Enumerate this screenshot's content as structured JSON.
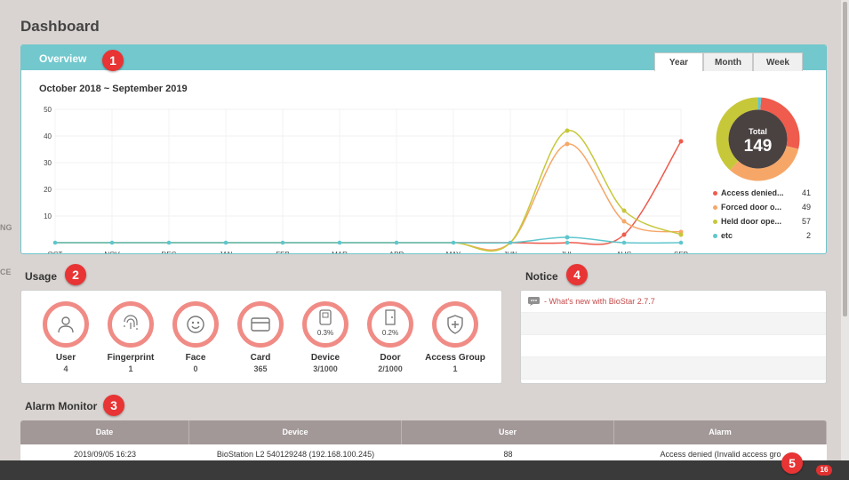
{
  "sidebar_fragments": {
    "fragment_a": "NG",
    "fragment_b": "CE"
  },
  "page_title": "Dashboard",
  "markers": [
    "1",
    "2",
    "3",
    "4",
    "5"
  ],
  "overview": {
    "title": "Overview",
    "tabs": [
      {
        "label": "Year",
        "active": true
      },
      {
        "label": "Month",
        "active": false
      },
      {
        "label": "Week",
        "active": false
      }
    ],
    "range": "October 2018 ~ September 2019",
    "total_label": "Total",
    "total_value": "149",
    "legend": [
      {
        "label": "Access denied...",
        "value": "41",
        "color": "#ef5b4c"
      },
      {
        "label": "Forced door o...",
        "value": "49",
        "color": "#f6a768"
      },
      {
        "label": "Held door ope...",
        "value": "57",
        "color": "#c7c73a"
      },
      {
        "label": "etc",
        "value": "2",
        "color": "#5fc6cd"
      }
    ]
  },
  "chart_data": {
    "type": "line",
    "categories": [
      "OCT",
      "NOV",
      "DEC",
      "JAN",
      "FEB",
      "MAR",
      "APR",
      "MAY",
      "JUN",
      "JUL",
      "AUG",
      "SEP"
    ],
    "ylim": [
      0,
      50
    ],
    "yticks": [
      10,
      20,
      30,
      40,
      50
    ],
    "series": [
      {
        "name": "Access denied",
        "color": "#ef5b4c",
        "values": [
          0,
          0,
          0,
          0,
          0,
          0,
          0,
          0,
          0,
          0,
          3,
          38
        ]
      },
      {
        "name": "Forced door open",
        "color": "#f6a768",
        "values": [
          0,
          0,
          0,
          0,
          0,
          0,
          0,
          0,
          0,
          37,
          8,
          4
        ]
      },
      {
        "name": "Held door open",
        "color": "#c7c73a",
        "values": [
          0,
          0,
          0,
          0,
          0,
          0,
          0,
          0,
          0,
          42,
          12,
          3
        ]
      },
      {
        "name": "etc",
        "color": "#5fc6cd",
        "values": [
          0,
          0,
          0,
          0,
          0,
          0,
          0,
          0,
          0,
          2,
          0,
          0
        ]
      }
    ],
    "pie": {
      "values": [
        41,
        49,
        57,
        2
      ],
      "colors": [
        "#ef5b4c",
        "#f6a768",
        "#c7c73a",
        "#5fc6cd"
      ]
    }
  },
  "usage": {
    "title": "Usage",
    "items": [
      {
        "label": "User",
        "value": "4",
        "icon": "user-icon",
        "pct": ""
      },
      {
        "label": "Fingerprint",
        "value": "1",
        "icon": "fingerprint-icon",
        "pct": ""
      },
      {
        "label": "Face",
        "value": "0",
        "icon": "face-icon",
        "pct": ""
      },
      {
        "label": "Card",
        "value": "365",
        "icon": "card-icon",
        "pct": ""
      },
      {
        "label": "Device",
        "value": "3/1000",
        "icon": "device-icon",
        "pct": "0.3%"
      },
      {
        "label": "Door",
        "value": "2/1000",
        "icon": "door-icon",
        "pct": "0.2%"
      },
      {
        "label": "Access Group",
        "value": "1",
        "icon": "shield-icon",
        "pct": ""
      }
    ]
  },
  "notice": {
    "title": "Notice",
    "items": [
      "- What's new with BioStar 2.7.7"
    ]
  },
  "alarm": {
    "title": "Alarm Monitor",
    "columns": [
      "Date",
      "Device",
      "User",
      "Alarm"
    ],
    "rows": [
      [
        "2019/09/05 16:23",
        "BioStation L2 540129248 (192.168.100.245)",
        "88",
        "Access denied (Invalid access gro"
      ]
    ]
  },
  "bottom_badge": "16"
}
